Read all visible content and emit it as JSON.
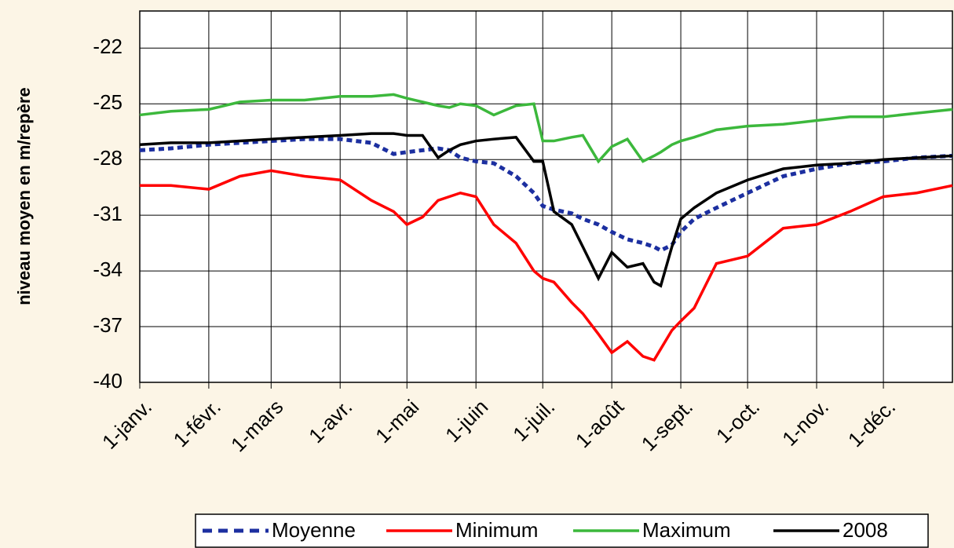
{
  "chart_data": {
    "type": "line",
    "y_label": "niveau moyen en m/repère",
    "x": [
      1,
      15,
      32,
      46,
      60,
      75,
      91,
      105,
      115,
      121,
      128,
      135,
      140,
      145,
      152,
      160,
      170,
      178,
      182,
      187,
      195,
      200,
      207,
      213,
      220,
      227,
      232,
      235,
      240,
      244,
      250,
      260,
      274,
      290,
      305,
      320,
      335,
      350,
      366
    ],
    "xlim": [
      1,
      366
    ],
    "xticks": [
      {
        "value": 1,
        "label": "1-janv."
      },
      {
        "value": 32,
        "label": "1-févr."
      },
      {
        "value": 60,
        "label": "1-mars"
      },
      {
        "value": 91,
        "label": "1-avr."
      },
      {
        "value": 121,
        "label": "1-mai"
      },
      {
        "value": 152,
        "label": "1-juin"
      },
      {
        "value": 182,
        "label": "1-juil."
      },
      {
        "value": 213,
        "label": "1-août"
      },
      {
        "value": 244,
        "label": "1-sept."
      },
      {
        "value": 274,
        "label": "1-oct."
      },
      {
        "value": 305,
        "label": "1-nov."
      },
      {
        "value": 335,
        "label": "1-déc."
      }
    ],
    "ylim": [
      -40,
      -20
    ],
    "yticks": [
      -22,
      -25,
      -28,
      -31,
      -34,
      -37,
      -40
    ],
    "grid": true,
    "legend": "bottom",
    "series": [
      {
        "name": "Moyenne",
        "color": "#1c2fa0",
        "dashed": true,
        "values": [
          -27.5,
          -27.4,
          -27.2,
          -27.1,
          -27.0,
          -26.9,
          -26.9,
          -27.1,
          -27.7,
          -27.6,
          -27.5,
          -27.4,
          -27.5,
          -27.9,
          -28.1,
          -28.2,
          -28.9,
          -29.8,
          -30.5,
          -30.7,
          -30.9,
          -31.2,
          -31.5,
          -31.9,
          -32.3,
          -32.5,
          -32.7,
          -32.9,
          -32.6,
          -31.9,
          -31.2,
          -30.6,
          -29.8,
          -28.9,
          -28.5,
          -28.2,
          -28.1,
          -27.9,
          -27.8
        ]
      },
      {
        "name": "Minimum",
        "color": "#ff0000",
        "values": [
          -29.4,
          -29.4,
          -29.6,
          -28.9,
          -28.6,
          -28.9,
          -29.1,
          -30.2,
          -30.8,
          -31.5,
          -31.1,
          -30.2,
          -30.0,
          -29.8,
          -30.0,
          -31.5,
          -32.5,
          -34.0,
          -34.4,
          -34.6,
          -35.7,
          -36.3,
          -37.4,
          -38.4,
          -37.8,
          -38.6,
          -38.8,
          -38.2,
          -37.2,
          -36.7,
          -36.0,
          -33.6,
          -33.2,
          -31.7,
          -31.5,
          -30.8,
          -30.0,
          -29.8,
          -29.4
        ]
      },
      {
        "name": "Maximum",
        "color": "#3cb83c",
        "values": [
          -25.6,
          -25.4,
          -25.3,
          -24.9,
          -24.8,
          -24.8,
          -24.6,
          -24.6,
          -24.5,
          -24.7,
          -24.9,
          -25.1,
          -25.2,
          -25.0,
          -25.1,
          -25.6,
          -25.1,
          -25.0,
          -27.0,
          -27.0,
          -26.8,
          -26.7,
          -28.1,
          -27.3,
          -26.9,
          -28.1,
          -27.8,
          -27.6,
          -27.2,
          -27.0,
          -26.8,
          -26.4,
          -26.2,
          -26.1,
          -25.9,
          -25.7,
          -25.7,
          -25.5,
          -25.3
        ]
      },
      {
        "name": "2008",
        "color": "#000000",
        "values": [
          -27.2,
          -27.1,
          -27.1,
          -27.0,
          -26.9,
          -26.8,
          -26.7,
          -26.6,
          -26.6,
          -26.7,
          -26.7,
          -27.9,
          -27.5,
          -27.2,
          -27.0,
          -26.9,
          -26.8,
          -28.1,
          -28.1,
          -30.8,
          -31.5,
          -32.7,
          -34.4,
          -33.0,
          -33.8,
          -33.6,
          -34.6,
          -34.8,
          -32.7,
          -31.2,
          -30.6,
          -29.8,
          -29.1,
          -28.5,
          -28.3,
          -28.2,
          -28.0,
          -27.9,
          -27.8
        ]
      }
    ]
  }
}
